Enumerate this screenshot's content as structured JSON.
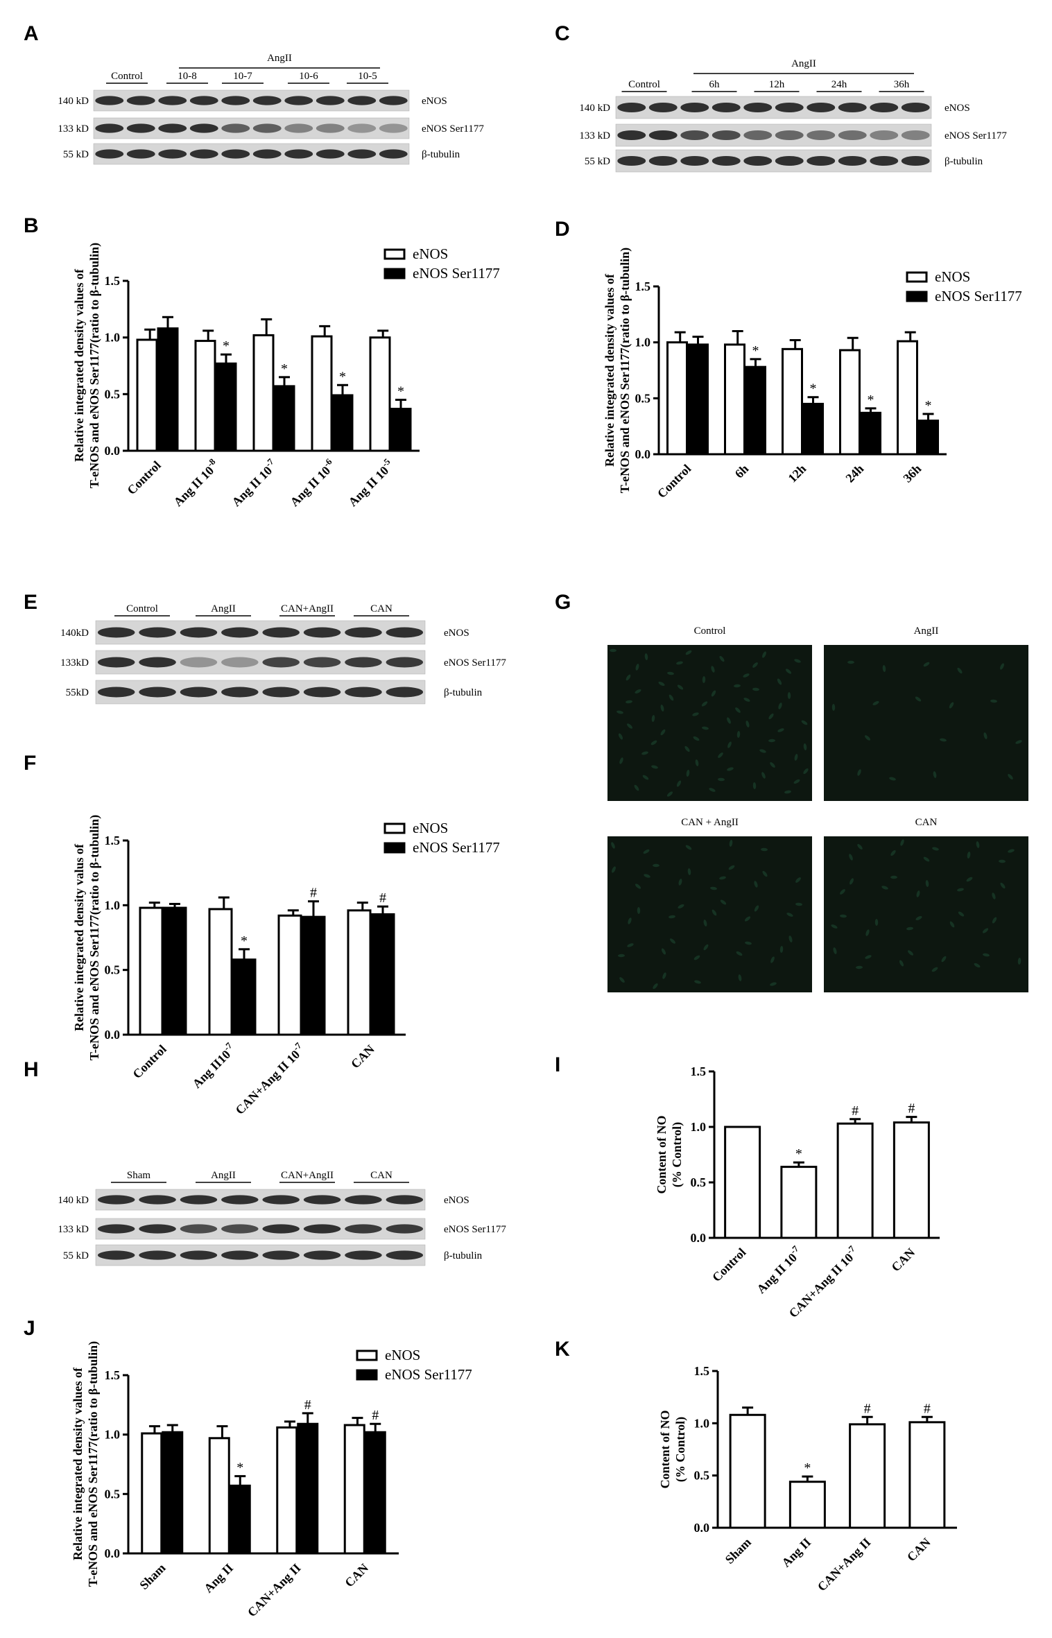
{
  "panel_labels": [
    "A",
    "B",
    "C",
    "D",
    "E",
    "F",
    "G",
    "H",
    "I",
    "J",
    "K"
  ],
  "legend": {
    "open": "eNOS",
    "filled": "eNOS Ser1177"
  },
  "blots": [
    {
      "id": "A",
      "group_label": "AngII",
      "lanes": [
        "Control",
        "10-8",
        "10-7",
        "10-6",
        "10-5"
      ],
      "bands": [
        {
          "mw": "140 kD",
          "name": "eNOS"
        },
        {
          "mw": "133 kD",
          "name": "eNOS Ser1177"
        },
        {
          "mw": "55 kD",
          "name": "β-tubulin"
        }
      ]
    },
    {
      "id": "C",
      "group_label": "AngII",
      "lanes": [
        "Control",
        "6h",
        "12h",
        "24h",
        "36h"
      ],
      "bands": [
        {
          "mw": "140 kD",
          "name": "eNOS"
        },
        {
          "mw": "133 kD",
          "name": "eNOS Ser1177"
        },
        {
          "mw": "55 kD",
          "name": "β-tubulin"
        }
      ]
    },
    {
      "id": "E",
      "group_label": "",
      "lanes": [
        "Control",
        "AngII",
        "CAN+AngII",
        "CAN"
      ],
      "bands": [
        {
          "mw": "140kD",
          "name": "eNOS"
        },
        {
          "mw": "133kD",
          "name": "eNOS  Ser1177"
        },
        {
          "mw": "55kD",
          "name": "β-tubulin"
        }
      ]
    },
    {
      "id": "I",
      "group_label": "",
      "lanes": [
        "Sham",
        "AngII",
        "CAN+AngII",
        "CAN"
      ],
      "bands": [
        {
          "mw": "140 kD",
          "name": "eNOS"
        },
        {
          "mw": "133 kD",
          "name": "eNOS Ser1177"
        },
        {
          "mw": "55 kD",
          "name": "β-tubulin"
        }
      ]
    }
  ],
  "micro": {
    "labels": [
      "Control",
      "AngII",
      "CAN + AngII",
      "CAN"
    ]
  },
  "chart_data": [
    {
      "id": "B",
      "type": "bar",
      "ylabel": [
        "Relative integrated density values of",
        "T-eNOS and eNOS Ser1177(ratio to β-tubulin)"
      ],
      "ylim": [
        0,
        1.5
      ],
      "ticks": [
        "0.0",
        "0.5",
        "1.0",
        "1.5"
      ],
      "categories": [
        "Control",
        "Ang II 10-8",
        "Ang II 10-7",
        "Ang II 10-6",
        "Ang II 10-5"
      ],
      "series": [
        {
          "name": "eNOS",
          "values": [
            0.98,
            0.97,
            1.02,
            1.01,
            1.0
          ],
          "err": [
            0.09,
            0.09,
            0.14,
            0.09,
            0.06
          ],
          "sig": [
            "",
            "",
            "",
            "",
            ""
          ]
        },
        {
          "name": "eNOS Ser1177",
          "values": [
            1.08,
            0.77,
            0.57,
            0.49,
            0.37
          ],
          "err": [
            0.1,
            0.08,
            0.08,
            0.09,
            0.08
          ],
          "sig": [
            "",
            "*",
            "*",
            "*",
            "*"
          ]
        }
      ]
    },
    {
      "id": "D",
      "type": "bar",
      "ylabel": [
        "Relative integrated density values of",
        "T-eNOS and eNOS Ser1177(ratio to β-tubulin)"
      ],
      "ylim": [
        0,
        1.5
      ],
      "ticks": [
        "0.0",
        "0.5",
        "1.0",
        "1.5"
      ],
      "categories": [
        "Control",
        "6h",
        "12h",
        "24h",
        "36h"
      ],
      "series": [
        {
          "name": "eNOS",
          "values": [
            1.0,
            0.98,
            0.94,
            0.93,
            1.01
          ],
          "err": [
            0.09,
            0.12,
            0.08,
            0.11,
            0.08
          ],
          "sig": [
            "",
            "",
            "",
            "",
            ""
          ]
        },
        {
          "name": "eNOS Ser1177",
          "values": [
            0.98,
            0.78,
            0.45,
            0.37,
            0.3
          ],
          "err": [
            0.07,
            0.07,
            0.06,
            0.04,
            0.06
          ],
          "sig": [
            "",
            "*",
            "*",
            "*",
            "*"
          ]
        }
      ]
    },
    {
      "id": "F",
      "type": "bar",
      "ylabel": [
        "Relative integrated density valus of",
        "T-eNOS and eNOS Ser1177(ratio to β-tubulin)"
      ],
      "ylim": [
        0,
        1.5
      ],
      "ticks": [
        "0.0",
        "0.5",
        "1.0",
        "1.5"
      ],
      "categories": [
        "Control",
        "Ang II10-7",
        "CAN+Ang II 10-7",
        "CAN"
      ],
      "series": [
        {
          "name": "eNOS",
          "values": [
            0.98,
            0.97,
            0.92,
            0.96
          ],
          "err": [
            0.04,
            0.09,
            0.04,
            0.06
          ],
          "sig": [
            "",
            "",
            "",
            ""
          ]
        },
        {
          "name": "eNOS Ser1177",
          "values": [
            0.98,
            0.58,
            0.91,
            0.93
          ],
          "err": [
            0.03,
            0.08,
            0.12,
            0.06
          ],
          "sig": [
            "",
            "*",
            "#",
            "#"
          ]
        }
      ]
    },
    {
      "id": "H",
      "type": "bar",
      "ylabel": [
        "Content of NO",
        "(% Control)"
      ],
      "ylim": [
        0,
        1.5
      ],
      "ticks": [
        "0.0",
        "0.5",
        "1.0",
        "1.5"
      ],
      "categories": [
        "Control",
        "Ang II 10-7",
        "CAN+Ang II 10-7",
        "CAN"
      ],
      "series": [
        {
          "name": "",
          "values": [
            1.0,
            0.64,
            1.03,
            1.04
          ],
          "err": [
            0.0,
            0.04,
            0.04,
            0.05
          ],
          "sig": [
            "",
            "*",
            "#",
            "#"
          ]
        }
      ]
    },
    {
      "id": "J",
      "type": "bar",
      "ylabel": [
        "Relative integrated density values of",
        "T-eNOS and eNOS Ser1177(ratio to β-tubulin)"
      ],
      "ylim": [
        0,
        1.5
      ],
      "ticks": [
        "0.0",
        "0.5",
        "1.0",
        "1.5"
      ],
      "categories": [
        "Sham",
        "Ang II",
        "CAN+Ang II",
        "CAN"
      ],
      "series": [
        {
          "name": "eNOS",
          "values": [
            1.01,
            0.97,
            1.06,
            1.08
          ],
          "err": [
            0.06,
            0.1,
            0.05,
            0.06
          ],
          "sig": [
            "",
            "",
            "",
            ""
          ]
        },
        {
          "name": "eNOS Ser1177",
          "values": [
            1.02,
            0.57,
            1.09,
            1.02
          ],
          "err": [
            0.06,
            0.08,
            0.09,
            0.07
          ],
          "sig": [
            "",
            "*",
            "#",
            "#"
          ]
        }
      ]
    },
    {
      "id": "K",
      "type": "bar",
      "ylabel": [
        "Content of NO",
        "(% Control)"
      ],
      "ylim": [
        0,
        1.5
      ],
      "ticks": [
        "0.0",
        "0.5",
        "1.0",
        "1.5"
      ],
      "categories": [
        "Sham",
        "Ang II",
        "CAN+Ang II",
        "CAN"
      ],
      "series": [
        {
          "name": "",
          "values": [
            1.08,
            0.44,
            0.99,
            1.01
          ],
          "err": [
            0.07,
            0.05,
            0.07,
            0.05
          ],
          "sig": [
            "",
            "*",
            "#",
            "#"
          ]
        }
      ]
    }
  ]
}
